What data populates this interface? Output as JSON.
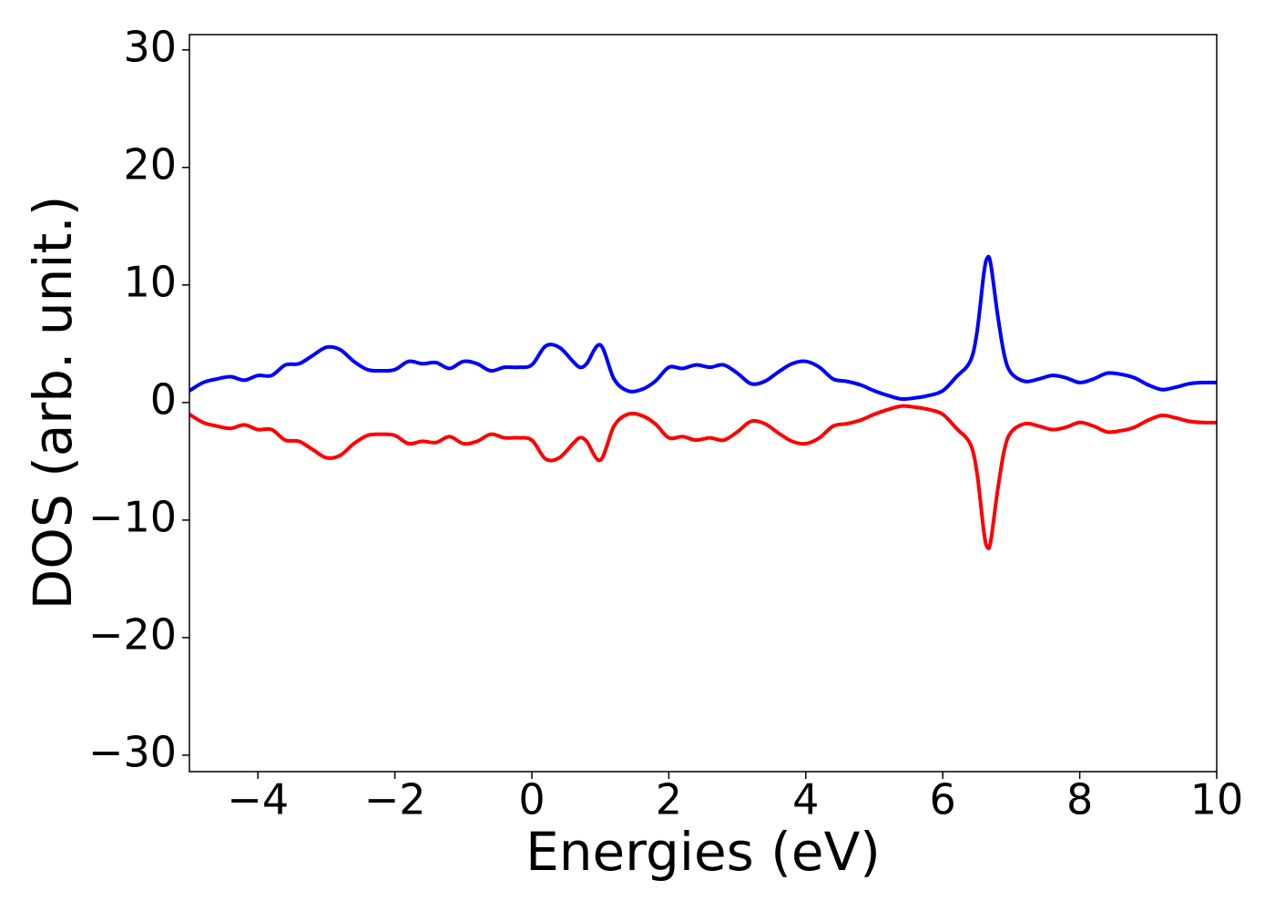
{
  "chart_data": {
    "type": "line",
    "xlabel": "Energies (eV)",
    "ylabel": "DOS (arb. unit.)",
    "x": [
      -5,
      -4.8,
      -4.6,
      -4.4,
      -4.2,
      -4.0,
      -3.8,
      -3.6,
      -3.4,
      -3.2,
      -3.0,
      -2.8,
      -2.6,
      -2.4,
      -2.2,
      -2.0,
      -1.8,
      -1.6,
      -1.4,
      -1.2,
      -1.0,
      -0.8,
      -0.6,
      -0.4,
      -0.2,
      0,
      0.2,
      0.4,
      0.6,
      0.7,
      0.8,
      1.0,
      1.2,
      1.4,
      1.6,
      1.8,
      2.0,
      2.2,
      2.4,
      2.6,
      2.8,
      3.0,
      3.2,
      3.4,
      3.6,
      3.8,
      4.0,
      4.2,
      4.4,
      4.6,
      4.8,
      5.0,
      5.2,
      5.4,
      5.6,
      5.8,
      6.0,
      6.2,
      6.4,
      6.5,
      6.6,
      6.65,
      6.7,
      6.8,
      6.9,
      7.0,
      7.2,
      7.4,
      7.6,
      7.8,
      8.0,
      8.2,
      8.4,
      8.6,
      8.8,
      9.0,
      9.2,
      9.4,
      9.6,
      9.8,
      10
    ],
    "series": [
      {
        "color": "#0000ff",
        "values": [
          1.0,
          1.7,
          2.0,
          2.2,
          1.9,
          2.3,
          2.3,
          3.2,
          3.3,
          4.0,
          4.7,
          4.5,
          3.5,
          2.8,
          2.7,
          2.8,
          3.5,
          3.3,
          3.4,
          2.9,
          3.5,
          3.3,
          2.7,
          3.0,
          3.0,
          3.2,
          4.8,
          4.7,
          3.5,
          3.0,
          3.3,
          4.9,
          2.0,
          1.0,
          1.1,
          1.8,
          3.0,
          2.9,
          3.2,
          3.0,
          3.2,
          2.5,
          1.6,
          1.8,
          2.6,
          3.3,
          3.5,
          3.0,
          2.0,
          1.8,
          1.5,
          1.0,
          0.6,
          0.3,
          0.4,
          0.6,
          1.0,
          2.2,
          3.5,
          6.0,
          11.0,
          12.3,
          11.8,
          7.5,
          4.0,
          2.5,
          1.8,
          2.0,
          2.3,
          2.1,
          1.7,
          2.0,
          2.5,
          2.4,
          2.1,
          1.5,
          1.1,
          1.3,
          1.6,
          1.7,
          1.7
        ]
      },
      {
        "color": "#ff0000",
        "values": [
          -1.0,
          -1.7,
          -2.0,
          -2.2,
          -1.9,
          -2.3,
          -2.3,
          -3.2,
          -3.3,
          -4.0,
          -4.7,
          -4.5,
          -3.5,
          -2.8,
          -2.7,
          -2.8,
          -3.5,
          -3.3,
          -3.4,
          -2.9,
          -3.5,
          -3.3,
          -2.7,
          -3.0,
          -3.0,
          -3.2,
          -4.8,
          -4.7,
          -3.5,
          -3.0,
          -3.3,
          -4.9,
          -2.0,
          -1.0,
          -1.1,
          -1.8,
          -3.0,
          -2.9,
          -3.2,
          -3.0,
          -3.2,
          -2.5,
          -1.6,
          -1.8,
          -2.6,
          -3.3,
          -3.5,
          -3.0,
          -2.0,
          -1.8,
          -1.5,
          -1.0,
          -0.6,
          -0.3,
          -0.4,
          -0.6,
          -1.0,
          -2.2,
          -3.5,
          -6.0,
          -11.0,
          -12.3,
          -11.8,
          -7.5,
          -4.0,
          -2.5,
          -1.8,
          -2.0,
          -2.3,
          -2.1,
          -1.7,
          -2.0,
          -2.5,
          -2.4,
          -2.1,
          -1.5,
          -1.1,
          -1.3,
          -1.6,
          -1.7,
          -1.7
        ]
      }
    ],
    "xlim": [
      -5,
      10
    ],
    "xticks": [
      {
        "value": -4,
        "label": "−4"
      },
      {
        "value": -2,
        "label": "−2"
      },
      0,
      2,
      4,
      6,
      8,
      10
    ],
    "ylim": [
      -31.4,
      31.3
    ],
    "yticks": [
      {
        "value": -30,
        "label": "−30"
      },
      {
        "value": -20,
        "label": "−20"
      },
      {
        "value": -10,
        "label": "−10"
      },
      0,
      10,
      20,
      30
    ]
  }
}
